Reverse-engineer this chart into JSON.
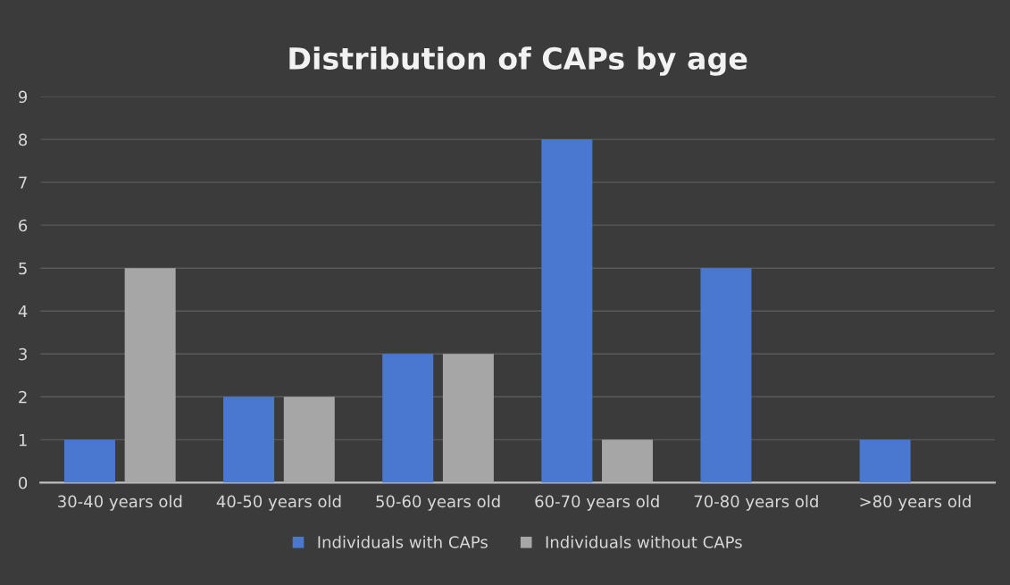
{
  "chart_data": {
    "type": "bar",
    "title": "Distribution of CAPs by age",
    "categories": [
      "30-40 years old",
      "40-50 years old",
      "50-60 years old",
      "60-70 years old",
      "70-80 years old",
      ">80 years old"
    ],
    "series": [
      {
        "name": "Individuals with CAPs",
        "color": "#4a78d0",
        "values": [
          1,
          2,
          3,
          8,
          5,
          1
        ]
      },
      {
        "name": "Individuals without CAPs",
        "color": "#a6a6a6",
        "values": [
          5,
          2,
          3,
          1,
          0,
          0
        ]
      }
    ],
    "ylim": [
      0,
      9
    ],
    "yticks": [
      0,
      1,
      2,
      3,
      4,
      5,
      6,
      7,
      8,
      9
    ],
    "grid": "y",
    "legend": "bottom"
  }
}
